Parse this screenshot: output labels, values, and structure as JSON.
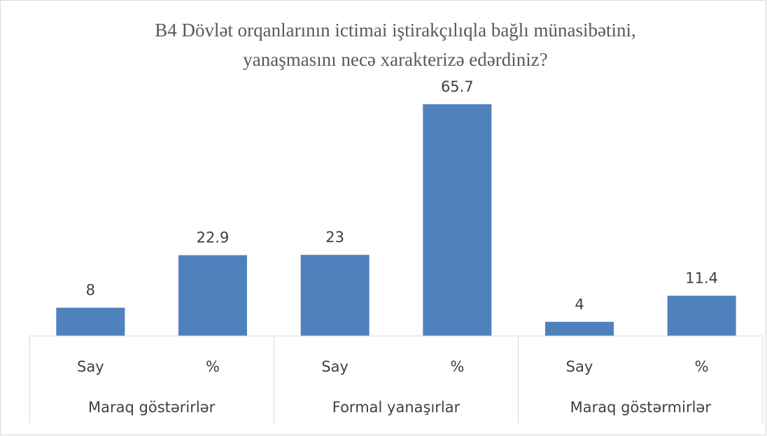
{
  "chart_data": {
    "type": "bar",
    "title": [
      "B4 Dövlət orqanlarının ictimai iştirakçılıqla bağlı münasibətini,",
      "yanaşmasını necə xarakterizə edərdiniz?"
    ],
    "categories": [
      "Say",
      "%",
      "Say",
      "%",
      "Say",
      "%"
    ],
    "groups": [
      "Maraq göstərirlər",
      "Formal yanaşırlar",
      "Maraq göstərmirlər"
    ],
    "values": [
      8,
      22.9,
      23,
      65.7,
      4,
      11.4
    ],
    "color": "#4f81bd"
  }
}
